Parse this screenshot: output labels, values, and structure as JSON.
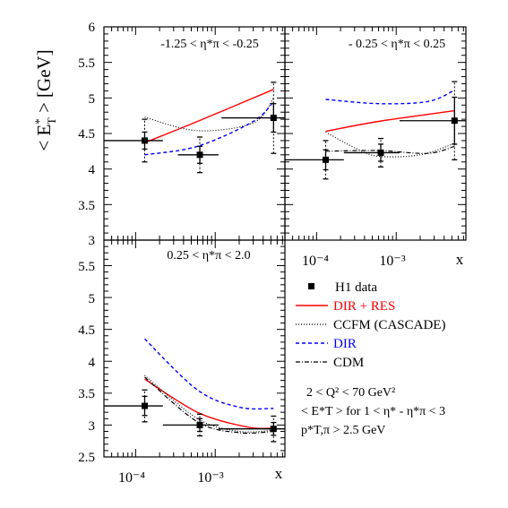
{
  "figure": {
    "y_axis_title": "< E",
    "y_axis_title_sup": "*",
    "y_axis_title_sub": "T",
    "y_axis_title_rest": " >  [GeV]",
    "x_axis_symbol": "x"
  },
  "legend": {
    "entries": [
      {
        "label": "H1 data",
        "style": "marker",
        "color": "#000000"
      },
      {
        "label": "DIR + RES",
        "style": "solid",
        "color": "#ff0000"
      },
      {
        "label": "CCFM (CASCADE)",
        "style": "dotted",
        "color": "#000000"
      },
      {
        "label": "DIR",
        "style": "dashed",
        "color": "#0000ff"
      },
      {
        "label": "CDM",
        "style": "dashdot",
        "color": "#000000"
      }
    ],
    "cut1": "2  <  Q² <  70 GeV²",
    "cut2": "< E*T >   for  1 < η* - η*π < 3",
    "cut3": "p*T,π > 2.5 GeV"
  },
  "chart_data": [
    {
      "type": "scatter",
      "panel": "top-left",
      "title": "-1.25 < η*π < -0.25",
      "xscale": "log",
      "xlim": [
        4e-05,
        0.0075
      ],
      "ylim": [
        3,
        6
      ],
      "yticks": [
        "3",
        "3.5",
        "4",
        "4.5",
        "5",
        "5.5",
        "6"
      ],
      "data": [
        {
          "x": 0.00013,
          "y": 4.4,
          "x_low": 4e-05,
          "x_high": 0.00022,
          "stat": 0.12,
          "tot": 0.3
        },
        {
          "x": 0.00064,
          "y": 4.2,
          "x_low": 0.00034,
          "x_high": 0.0011,
          "stat": 0.12,
          "tot": 0.25
        },
        {
          "x": 0.0054,
          "y": 4.72,
          "x_low": 0.0012,
          "x_high": 0.0075,
          "stat": 0.2,
          "tot": 0.5
        }
      ],
      "series": [
        {
          "name": "DIR + RES",
          "x": [
            0.00013,
            0.0006,
            0.0054
          ],
          "y": [
            4.37,
            4.67,
            5.12
          ]
        },
        {
          "name": "CCFM (CASCADE)",
          "x": [
            0.00013,
            0.0006,
            0.003,
            0.0054
          ],
          "y": [
            4.73,
            4.54,
            4.65,
            5.0
          ]
        },
        {
          "name": "DIR",
          "x": [
            0.00013,
            0.0006,
            0.003,
            0.0054
          ],
          "y": [
            4.2,
            4.32,
            4.67,
            4.95
          ]
        }
      ]
    },
    {
      "type": "scatter",
      "panel": "top-right",
      "title": "- 0.25 < η*π < 0.25",
      "xscale": "log",
      "xlim": [
        4e-05,
        0.0075
      ],
      "ylim": [
        3,
        6
      ],
      "xticks": [
        "10⁻⁴",
        "10⁻³"
      ],
      "data": [
        {
          "x": 0.00013,
          "y": 4.13,
          "x_low": 4e-05,
          "x_high": 0.00022,
          "stat": 0.14,
          "tot": 0.27
        },
        {
          "x": 0.00064,
          "y": 4.23,
          "x_low": 0.00022,
          "x_high": 0.0011,
          "stat": 0.12,
          "tot": 0.2
        },
        {
          "x": 0.0054,
          "y": 4.68,
          "x_low": 0.0011,
          "x_high": 0.0075,
          "stat": 0.33,
          "tot": 0.55
        }
      ],
      "series": [
        {
          "name": "DIR + RES",
          "x": [
            0.00013,
            0.0006,
            0.0054
          ],
          "y": [
            4.53,
            4.67,
            4.82
          ]
        },
        {
          "name": "CCFM (CASCADE)",
          "x": [
            0.00013,
            0.0003,
            0.0006,
            0.002,
            0.0054
          ],
          "y": [
            4.52,
            4.3,
            4.18,
            4.2,
            4.36
          ]
        },
        {
          "name": "DIR",
          "x": [
            0.00013,
            0.0006,
            0.0025,
            0.0054
          ],
          "y": [
            4.98,
            4.92,
            4.95,
            5.11
          ]
        },
        {
          "name": "CDM",
          "x": [
            0.00013,
            0.0006,
            0.0025,
            0.0054
          ],
          "y": [
            4.25,
            4.26,
            4.22,
            4.32
          ]
        }
      ]
    },
    {
      "type": "scatter",
      "panel": "bottom-left",
      "title": "0.25 < η*π < 2.0",
      "xscale": "log",
      "xlim": [
        4e-05,
        0.0075
      ],
      "ylim": [
        2.5,
        5.9
      ],
      "yticks": [
        "2.5",
        "3",
        "3.5",
        "4",
        "4.5",
        "5",
        "5.5"
      ],
      "xticks": [
        "10⁻⁴",
        "10⁻³"
      ],
      "data": [
        {
          "x": 0.00013,
          "y": 3.3,
          "x_low": 4e-05,
          "x_high": 0.00022,
          "stat": 0.15,
          "tot": 0.25
        },
        {
          "x": 0.00064,
          "y": 3.0,
          "x_low": 0.00022,
          "x_high": 0.0011,
          "stat": 0.1,
          "tot": 0.17
        },
        {
          "x": 0.0054,
          "y": 2.94,
          "x_low": 0.0011,
          "x_high": 0.0075,
          "stat": 0.1,
          "tot": 0.2
        }
      ],
      "series": [
        {
          "name": "DIR + RES",
          "x": [
            0.00013,
            0.0006,
            0.0025,
            0.0054
          ],
          "y": [
            3.72,
            3.2,
            2.97,
            2.95
          ]
        },
        {
          "name": "CCFM (CASCADE)",
          "x": [
            0.00013,
            0.0006,
            0.002,
            0.0054
          ],
          "y": [
            3.78,
            3.1,
            2.9,
            2.92
          ]
        },
        {
          "name": "DIR",
          "x": [
            0.00013,
            0.0006,
            0.002,
            0.0054
          ],
          "y": [
            4.35,
            3.55,
            3.28,
            3.26
          ]
        },
        {
          "name": "CDM",
          "x": [
            0.00013,
            0.0006,
            0.002,
            0.0054
          ],
          "y": [
            3.75,
            3.05,
            2.88,
            2.9
          ]
        }
      ]
    }
  ]
}
